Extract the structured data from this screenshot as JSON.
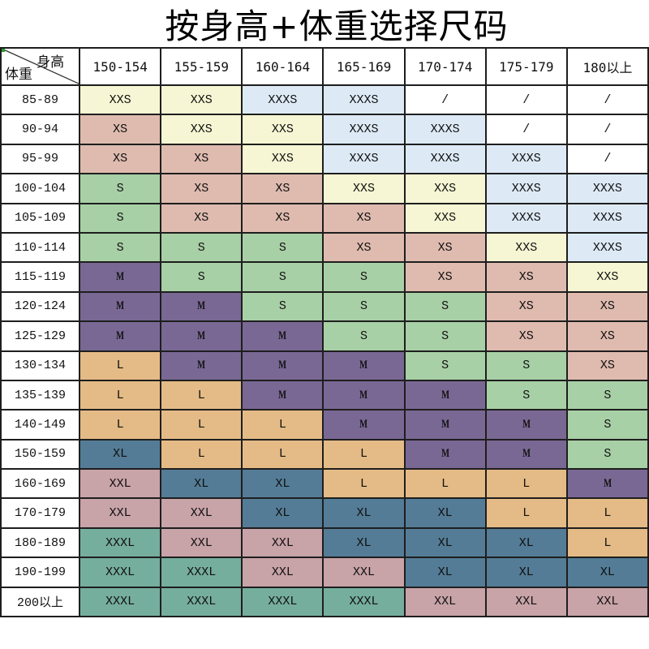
{
  "title": "按身高+体重选择尺码",
  "corner": {
    "height_label": "身高",
    "weight_label": "体重"
  },
  "height_columns": [
    "150-154",
    "155-159",
    "160-164",
    "165-169",
    "170-174",
    "175-179",
    "180以上"
  ],
  "size_colors": {
    "XXXS": "#ddeaf6",
    "XXS": "#f6f6d4",
    "XS": "#dfbbaf",
    "S": "#a8d0a6",
    "M": "#7a6894",
    "L": "#e4bb86",
    "XL": "#547c96",
    "XXL": "#c8a3a8",
    "XXXL": "#76ae9e",
    "/": "#ffffff"
  },
  "rows": [
    {
      "weight": "85-89",
      "sizes": [
        "XXS",
        "XXS",
        "XXXS",
        "XXXS",
        "/",
        "/",
        "/"
      ]
    },
    {
      "weight": "90-94",
      "sizes": [
        "XS",
        "XXS",
        "XXS",
        "XXXS",
        "XXXS",
        "/",
        "/"
      ]
    },
    {
      "weight": "95-99",
      "sizes": [
        "XS",
        "XS",
        "XXS",
        "XXXS",
        "XXXS",
        "XXXS",
        "/"
      ]
    },
    {
      "weight": "100-104",
      "sizes": [
        "S",
        "XS",
        "XS",
        "XXS",
        "XXS",
        "XXXS",
        "XXXS"
      ]
    },
    {
      "weight": "105-109",
      "sizes": [
        "S",
        "XS",
        "XS",
        "XS",
        "XXS",
        "XXXS",
        "XXXS"
      ]
    },
    {
      "weight": "110-114",
      "sizes": [
        "S",
        "S",
        "S",
        "XS",
        "XS",
        "XXS",
        "XXXS"
      ]
    },
    {
      "weight": "115-119",
      "sizes": [
        "M",
        "S",
        "S",
        "S",
        "XS",
        "XS",
        "XXS"
      ]
    },
    {
      "weight": "120-124",
      "sizes": [
        "M",
        "M",
        "S",
        "S",
        "S",
        "XS",
        "XS"
      ]
    },
    {
      "weight": "125-129",
      "sizes": [
        "M",
        "M",
        "M",
        "S",
        "S",
        "XS",
        "XS"
      ]
    },
    {
      "weight": "130-134",
      "sizes": [
        "L",
        "M",
        "M",
        "M",
        "S",
        "S",
        "XS"
      ]
    },
    {
      "weight": "135-139",
      "sizes": [
        "L",
        "L",
        "M",
        "M",
        "M",
        "S",
        "S"
      ]
    },
    {
      "weight": "140-149",
      "sizes": [
        "L",
        "L",
        "L",
        "M",
        "M",
        "M",
        "S"
      ]
    },
    {
      "weight": "150-159",
      "sizes": [
        "XL",
        "L",
        "L",
        "L",
        "M",
        "M",
        "S"
      ]
    },
    {
      "weight": "160-169",
      "sizes": [
        "XXL",
        "XL",
        "XL",
        "L",
        "L",
        "L",
        "M"
      ]
    },
    {
      "weight": "170-179",
      "sizes": [
        "XXL",
        "XXL",
        "XL",
        "XL",
        "XL",
        "L",
        "L"
      ]
    },
    {
      "weight": "180-189",
      "sizes": [
        "XXXL",
        "XXL",
        "XXL",
        "XL",
        "XL",
        "XL",
        "L"
      ]
    },
    {
      "weight": "190-199",
      "sizes": [
        "XXXL",
        "XXXL",
        "XXL",
        "XXL",
        "XL",
        "XL",
        "XL"
      ]
    },
    {
      "weight": "200以上",
      "sizes": [
        "XXXL",
        "XXXL",
        "XXXL",
        "XXXL",
        "XXL",
        "XXL",
        "XXL"
      ]
    }
  ]
}
